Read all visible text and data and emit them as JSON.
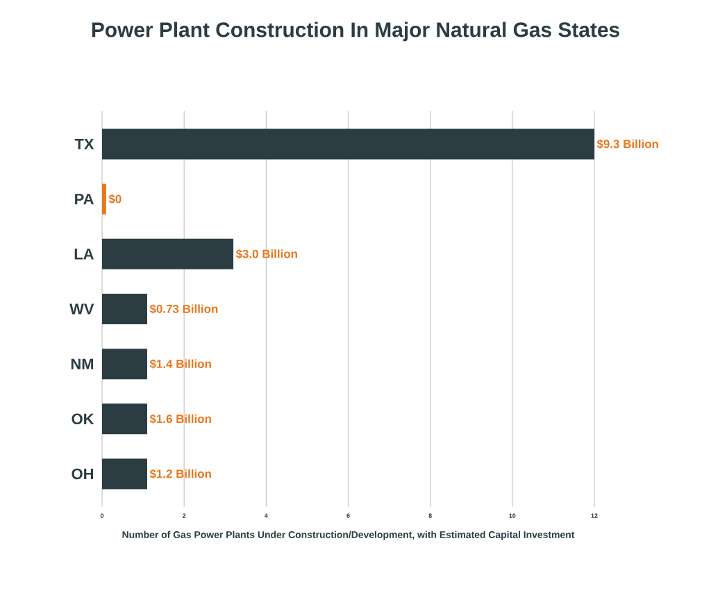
{
  "chart_data": {
    "type": "bar",
    "orientation": "horizontal",
    "title": "Power Plant Construction In Major Natural Gas States",
    "xlabel": "Number of Gas Power Plants Under Construction/Development, with Estimated Capital Investment",
    "categories": [
      "TX",
      "PA",
      "LA",
      "WV",
      "NM",
      "OK",
      "OH"
    ],
    "values": [
      12,
      0.1,
      3.2,
      1.1,
      1.1,
      1.1,
      1.1
    ],
    "colors": [
      "#2b3d42",
      "#e8781e",
      "#2b3d42",
      "#2b3d42",
      "#2b3d42",
      "#2b3d42",
      "#2b3d42"
    ],
    "annotations": [
      {
        "text": "$9.3 Billion",
        "x": 12,
        "y": "TX"
      },
      {
        "text": "$0",
        "x": 0.1,
        "y": "PA"
      },
      {
        "text": "$3.0 Billion",
        "x": 3.2,
        "y": "LA"
      },
      {
        "text": "$0.73 Billion",
        "x": 1.1,
        "y": "WV"
      },
      {
        "text": "$1.4 Billion",
        "x": 1.1,
        "y": "NM"
      },
      {
        "text": "$1.6 Billion",
        "x": 1.1,
        "y": "OK"
      },
      {
        "text": "$1.2 Billion",
        "x": 1.1,
        "y": "OH"
      }
    ],
    "xlim": [
      0,
      12
    ],
    "xticks": [
      0,
      2,
      4,
      6,
      8,
      10,
      12
    ],
    "grid": "x"
  }
}
